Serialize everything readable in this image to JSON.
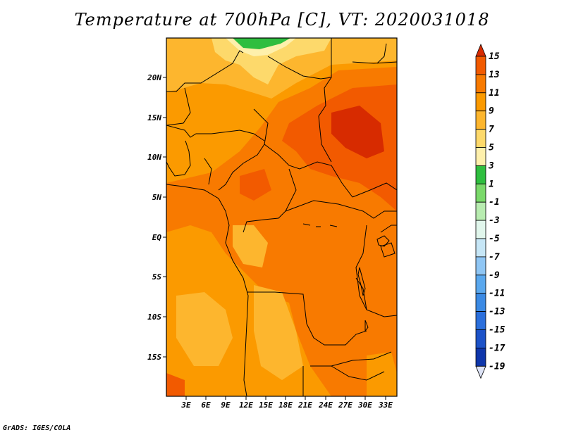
{
  "title": "Temperature at 700hPa [C], VT: 2020031018",
  "credit": "GrADS: IGES/COLA",
  "map": {
    "lon_ticks": [
      "3E",
      "6E",
      "9E",
      "12E",
      "15E",
      "18E",
      "21E",
      "24E",
      "27E",
      "30E",
      "33E"
    ],
    "lat_ticks": [
      "20N",
      "15N",
      "10N",
      "5N",
      "EQ",
      "5S",
      "10S",
      "15S"
    ]
  },
  "colorbar": {
    "labels": [
      "15",
      "13",
      "11",
      "9",
      "7",
      "5",
      "3",
      "1",
      "-1",
      "-3",
      "-5",
      "-7",
      "-9",
      "-11",
      "-13",
      "-15",
      "-17",
      "-19"
    ],
    "colors": [
      "#d72b00",
      "#f25a00",
      "#f87a00",
      "#fb9a00",
      "#fdb62e",
      "#fdd96b",
      "#fef0ac",
      "#2fbe3f",
      "#7ad96a",
      "#b8ecb0",
      "#e1f6ec",
      "#c6e6f6",
      "#8fc6f4",
      "#5aa8ee",
      "#3b8ae4",
      "#2b6fdc",
      "#1c52c8",
      "#0e36ab",
      "#07207f"
    ]
  },
  "colors": {
    "t15": "#d72b00",
    "t13": "#f25a00",
    "t11": "#f87a00",
    "t9": "#fb9a00",
    "t7": "#fdb62e",
    "t5": "#fdd96b",
    "t3": "#fef0ac",
    "green": "#2fbe3f"
  }
}
